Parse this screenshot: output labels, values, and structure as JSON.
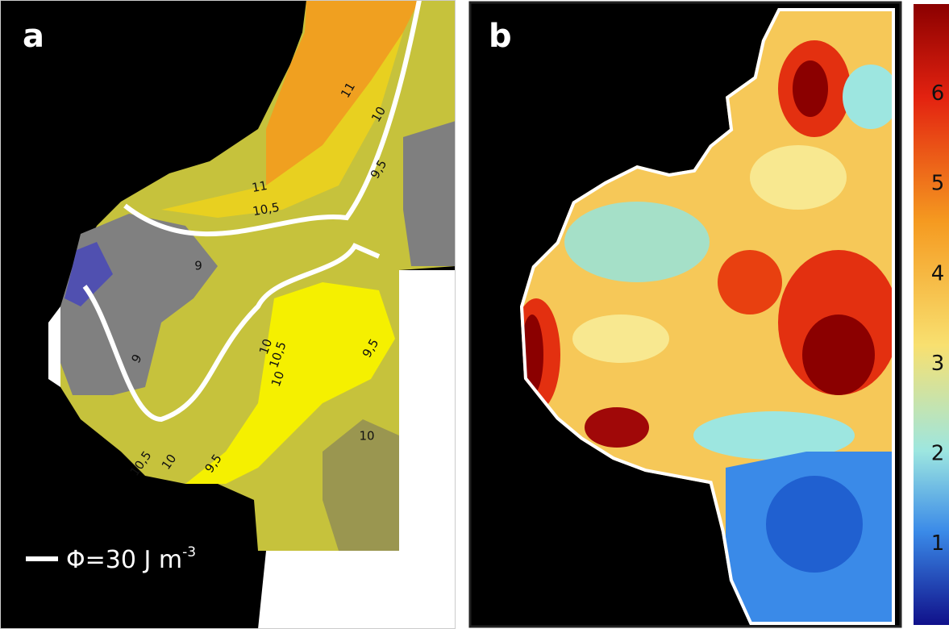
{
  "panel_a": {
    "label": "a",
    "contour_labels": [
      "11",
      "10",
      "9,5",
      "11",
      "10,5",
      "9",
      "9",
      "10",
      "10,5",
      "10",
      "9,5",
      "10",
      "10,5",
      "10",
      "9,5"
    ],
    "legend": {
      "text": "Φ=30 J m",
      "superscript": "-3"
    }
  },
  "panel_b": {
    "label": "b",
    "colorbar": {
      "lim": [
        0.1,
        7.0
      ],
      "ticks": [
        1,
        2,
        3,
        4,
        5,
        6
      ]
    }
  }
}
